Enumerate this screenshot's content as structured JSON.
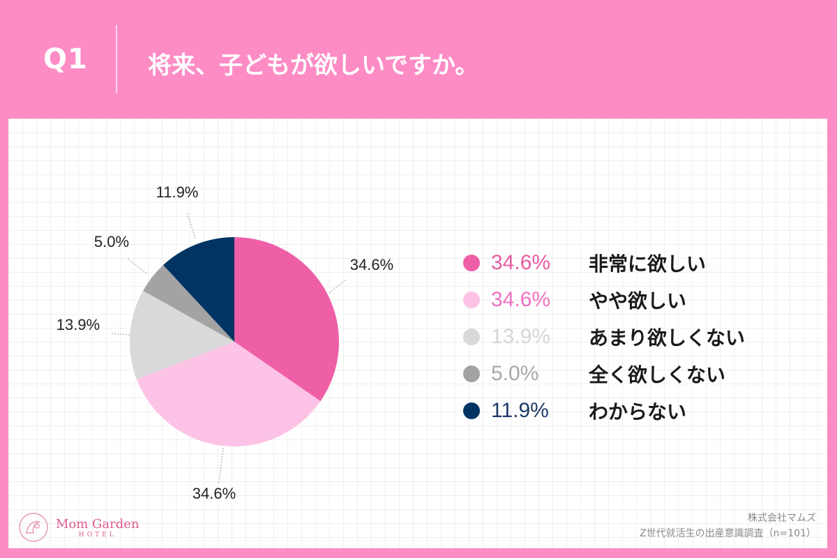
{
  "header": {
    "question_label": "Q1",
    "title": "将来、子どもが欲しいですか。"
  },
  "chart_data": {
    "type": "pie",
    "categories": [
      "非常に欲しい",
      "やや欲しい",
      "あまり欲しくない",
      "全く欲しくない",
      "わからない"
    ],
    "values": [
      34.6,
      34.6,
      13.9,
      5.0,
      11.9
    ],
    "value_labels": [
      "34.6%",
      "34.6%",
      "13.9%",
      "5.0%",
      "11.9%"
    ],
    "colors": [
      "#ee5fa7",
      "#fcc3e6",
      "#d9d9d9",
      "#a3a3a3",
      "#003463"
    ],
    "legend_text_colors": [
      "#ea5aa2",
      "#f070c0",
      "#d6d6d6",
      "#a8a8a8",
      "#1c3a68"
    ],
    "legend_placement": "right",
    "start": "12 o'clock, clockwise"
  },
  "footer": {
    "logo_main": "Mom Garden",
    "logo_sub": "HOTEL",
    "company": "株式会社マムズ",
    "survey": "Z世代就活生の出産意識調査（n=101）"
  }
}
